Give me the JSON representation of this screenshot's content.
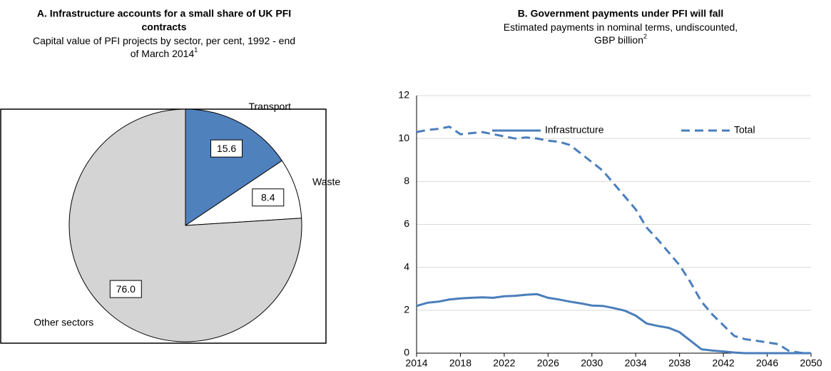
{
  "chart_data": [
    {
      "type": "pie",
      "title": [
        "A. Infrastructure accounts for a small share of UK PFI",
        "contracts"
      ],
      "subtitle": [
        "Capital value of PFI projects by sector, per cent, 1992 - end",
        "of March 2014"
      ],
      "subtitle_note": "1",
      "categories": [
        "Transport",
        "Waste",
        "Other sectors"
      ],
      "values": [
        15.6,
        8.4,
        76
      ],
      "value_labels": [
        "15.6",
        "8.4",
        "76.0"
      ],
      "colors": [
        "#4f81bd",
        "#ffffff",
        "#d4d4d4"
      ]
    },
    {
      "type": "line",
      "title": [
        "B. Government payments under PFI will fall"
      ],
      "subtitle": [
        "Estimated payments in nominal terms, undiscounted,",
        "GBP billion"
      ],
      "subtitle_note": "2",
      "x": [
        2014,
        2015,
        2016,
        2017,
        2018,
        2019,
        2020,
        2021,
        2022,
        2023,
        2024,
        2025,
        2026,
        2027,
        2028,
        2029,
        2030,
        2031,
        2032,
        2033,
        2034,
        2035,
        2036,
        2037,
        2038,
        2039,
        2040,
        2041,
        2042,
        2043,
        2044,
        2045,
        2046,
        2047,
        2048,
        2049,
        2050
      ],
      "series": [
        {
          "name": "Infrastructure",
          "color": "#4a7ebb",
          "dashed": false,
          "values": [
            2.2,
            2.35,
            2.4,
            2.5,
            2.55,
            2.58,
            2.6,
            2.58,
            2.65,
            2.67,
            2.72,
            2.75,
            2.58,
            2.5,
            2.4,
            2.32,
            2.22,
            2.2,
            2.1,
            1.98,
            1.75,
            1.38,
            1.27,
            1.18,
            0.98,
            0.58,
            0.18,
            0.12,
            0.08,
            0.03,
            0,
            0,
            0,
            0,
            0,
            0,
            0
          ]
        },
        {
          "name": "Total",
          "color": "#4a7ebb",
          "dashed": true,
          "values": [
            10.3,
            10.4,
            10.45,
            10.55,
            10.2,
            10.25,
            10.3,
            10.2,
            10.1,
            10.0,
            10.05,
            10.0,
            9.9,
            9.85,
            9.7,
            9.3,
            8.9,
            8.5,
            7.9,
            7.3,
            6.7,
            5.85,
            5.3,
            4.7,
            4.1,
            3.3,
            2.4,
            1.8,
            1.3,
            0.8,
            0.65,
            0.58,
            0.5,
            0.42,
            0.1,
            0.02,
            0
          ]
        }
      ],
      "xlim": [
        2014,
        2050
      ],
      "xticks": [
        2014,
        2018,
        2022,
        2026,
        2030,
        2034,
        2038,
        2042,
        2046,
        2050
      ],
      "ylim": [
        0,
        12
      ],
      "yticks": [
        0,
        2,
        4,
        6,
        8,
        10,
        12
      ],
      "grid": true
    }
  ]
}
